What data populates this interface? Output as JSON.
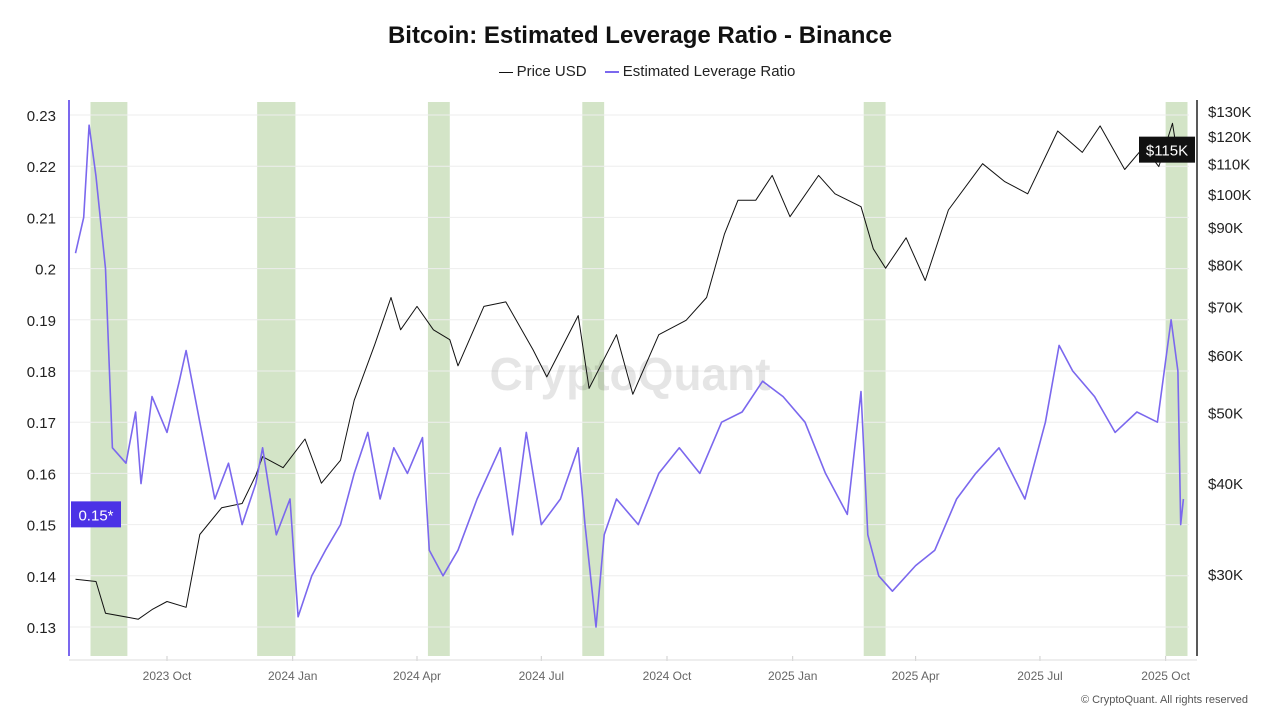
{
  "chart_data": {
    "type": "line",
    "title": "Bitcoin: Estimated Leverage Ratio - Binance",
    "legend_placement": "top-center",
    "grid": true,
    "x_ticks": [
      {
        "label": "2023 Oct",
        "date": "2023-10-01"
      },
      {
        "label": "2024 Jan",
        "date": "2024-01-01"
      },
      {
        "label": "2024 Apr",
        "date": "2024-04-01"
      },
      {
        "label": "2024 Jul",
        "date": "2024-07-01"
      },
      {
        "label": "2024 Oct",
        "date": "2024-10-01"
      },
      {
        "label": "2025 Jan",
        "date": "2025-01-01"
      },
      {
        "label": "2025 Apr",
        "date": "2025-04-01"
      },
      {
        "label": "2025 Jul",
        "date": "2025-07-01"
      },
      {
        "label": "2025 Oct",
        "date": "2025-10-01"
      }
    ],
    "x_range": [
      "2023-07-26",
      "2025-10-16"
    ],
    "left_axis": {
      "ticks": [
        0.13,
        0.14,
        0.15,
        0.16,
        0.17,
        0.18,
        0.19,
        0.2,
        0.21,
        0.22,
        0.23
      ],
      "range": [
        0.125,
        0.235
      ],
      "current_label": "0.15*",
      "current_value": 0.152
    },
    "right_axis": {
      "scale": "log",
      "ticks": [
        {
          "v": 30000,
          "label": "$30K"
        },
        {
          "v": 40000,
          "label": "$40K"
        },
        {
          "v": 50000,
          "label": "$50K"
        },
        {
          "v": 60000,
          "label": "$60K"
        },
        {
          "v": 70000,
          "label": "$70K"
        },
        {
          "v": 80000,
          "label": "$80K"
        },
        {
          "v": 90000,
          "label": "$90K"
        },
        {
          "v": 100000,
          "label": "$100K"
        },
        {
          "v": 110000,
          "label": "$110K"
        },
        {
          "v": 120000,
          "label": "$120K"
        },
        {
          "v": 130000,
          "label": "$130K"
        }
      ],
      "current_label": "$115K",
      "current_value": 115000
    },
    "highlight_bands": [
      [
        "2023-08-06",
        "2023-09-02"
      ],
      [
        "2023-12-06",
        "2024-01-03"
      ],
      [
        "2024-04-09",
        "2024-04-25"
      ],
      [
        "2024-07-31",
        "2024-08-16"
      ],
      [
        "2025-02-22",
        "2025-03-10"
      ],
      [
        "2025-10-01",
        "2025-10-17"
      ]
    ],
    "band_color": "#d3e4c7",
    "series": [
      {
        "name": "Price USD",
        "color": "#111111",
        "axis": "right",
        "points": [
          [
            "2023-07-26",
            29500
          ],
          [
            "2023-08-10",
            29300
          ],
          [
            "2023-08-17",
            26500
          ],
          [
            "2023-09-10",
            26000
          ],
          [
            "2023-09-20",
            26800
          ],
          [
            "2023-10-01",
            27500
          ],
          [
            "2023-10-15",
            27000
          ],
          [
            "2023-10-25",
            34000
          ],
          [
            "2023-11-10",
            37000
          ],
          [
            "2023-11-25",
            37500
          ],
          [
            "2023-12-05",
            41000
          ],
          [
            "2023-12-10",
            43500
          ],
          [
            "2023-12-25",
            42000
          ],
          [
            "2024-01-10",
            46000
          ],
          [
            "2024-01-22",
            40000
          ],
          [
            "2024-02-05",
            43000
          ],
          [
            "2024-02-15",
            52000
          ],
          [
            "2024-03-01",
            62000
          ],
          [
            "2024-03-13",
            72000
          ],
          [
            "2024-03-20",
            65000
          ],
          [
            "2024-04-01",
            70000
          ],
          [
            "2024-04-13",
            65000
          ],
          [
            "2024-04-25",
            63000
          ],
          [
            "2024-05-01",
            58000
          ],
          [
            "2024-05-20",
            70000
          ],
          [
            "2024-06-05",
            71000
          ],
          [
            "2024-06-25",
            61000
          ],
          [
            "2024-07-05",
            56000
          ],
          [
            "2024-07-28",
            68000
          ],
          [
            "2024-08-05",
            54000
          ],
          [
            "2024-08-25",
            64000
          ],
          [
            "2024-09-06",
            53000
          ],
          [
            "2024-09-25",
            64000
          ],
          [
            "2024-10-15",
            67000
          ],
          [
            "2024-10-30",
            72000
          ],
          [
            "2024-11-12",
            88000
          ],
          [
            "2024-11-22",
            98000
          ],
          [
            "2024-12-05",
            98000
          ],
          [
            "2024-12-17",
            106000
          ],
          [
            "2024-12-30",
            93000
          ],
          [
            "2025-01-20",
            106000
          ],
          [
            "2025-02-01",
            100000
          ],
          [
            "2025-02-20",
            96000
          ],
          [
            "2025-03-01",
            84000
          ],
          [
            "2025-03-10",
            79000
          ],
          [
            "2025-03-25",
            87000
          ],
          [
            "2025-04-08",
            76000
          ],
          [
            "2025-04-25",
            95000
          ],
          [
            "2025-05-20",
            110000
          ],
          [
            "2025-06-05",
            104000
          ],
          [
            "2025-06-22",
            100000
          ],
          [
            "2025-07-14",
            122000
          ],
          [
            "2025-08-01",
            114000
          ],
          [
            "2025-08-14",
            124000
          ],
          [
            "2025-09-01",
            108000
          ],
          [
            "2025-09-15",
            116000
          ],
          [
            "2025-09-26",
            109000
          ],
          [
            "2025-10-06",
            125000
          ],
          [
            "2025-10-10",
            112000
          ],
          [
            "2025-10-14",
            115000
          ]
        ]
      },
      {
        "name": "Estimated Leverage Ratio",
        "color": "#7b68ee",
        "axis": "left",
        "points": [
          [
            "2023-07-26",
            0.203
          ],
          [
            "2023-08-01",
            0.21
          ],
          [
            "2023-08-05",
            0.228
          ],
          [
            "2023-08-10",
            0.218
          ],
          [
            "2023-08-17",
            0.2
          ],
          [
            "2023-08-22",
            0.165
          ],
          [
            "2023-09-01",
            0.162
          ],
          [
            "2023-09-08",
            0.172
          ],
          [
            "2023-09-12",
            0.158
          ],
          [
            "2023-09-20",
            0.175
          ],
          [
            "2023-10-01",
            0.168
          ],
          [
            "2023-10-10",
            0.178
          ],
          [
            "2023-10-15",
            0.184
          ],
          [
            "2023-10-25",
            0.17
          ],
          [
            "2023-11-05",
            0.155
          ],
          [
            "2023-11-15",
            0.162
          ],
          [
            "2023-11-25",
            0.15
          ],
          [
            "2023-12-05",
            0.158
          ],
          [
            "2023-12-10",
            0.165
          ],
          [
            "2023-12-20",
            0.148
          ],
          [
            "2023-12-30",
            0.155
          ],
          [
            "2024-01-05",
            0.132
          ],
          [
            "2024-01-15",
            0.14
          ],
          [
            "2024-01-25",
            0.145
          ],
          [
            "2024-02-05",
            0.15
          ],
          [
            "2024-02-15",
            0.16
          ],
          [
            "2024-02-25",
            0.168
          ],
          [
            "2024-03-05",
            0.155
          ],
          [
            "2024-03-15",
            0.165
          ],
          [
            "2024-03-25",
            0.16
          ],
          [
            "2024-04-05",
            0.167
          ],
          [
            "2024-04-10",
            0.145
          ],
          [
            "2024-04-20",
            0.14
          ],
          [
            "2024-05-01",
            0.145
          ],
          [
            "2024-05-15",
            0.155
          ],
          [
            "2024-06-01",
            0.165
          ],
          [
            "2024-06-10",
            0.148
          ],
          [
            "2024-06-20",
            0.168
          ],
          [
            "2024-07-01",
            0.15
          ],
          [
            "2024-07-15",
            0.155
          ],
          [
            "2024-07-28",
            0.165
          ],
          [
            "2024-08-02",
            0.15
          ],
          [
            "2024-08-10",
            0.13
          ],
          [
            "2024-08-16",
            0.148
          ],
          [
            "2024-08-25",
            0.155
          ],
          [
            "2024-09-10",
            0.15
          ],
          [
            "2024-09-25",
            0.16
          ],
          [
            "2024-10-10",
            0.165
          ],
          [
            "2024-10-25",
            0.16
          ],
          [
            "2024-11-10",
            0.17
          ],
          [
            "2024-11-25",
            0.172
          ],
          [
            "2024-12-10",
            0.178
          ],
          [
            "2024-12-25",
            0.175
          ],
          [
            "2025-01-10",
            0.17
          ],
          [
            "2025-01-25",
            0.16
          ],
          [
            "2025-02-10",
            0.152
          ],
          [
            "2025-02-20",
            0.176
          ],
          [
            "2025-02-25",
            0.148
          ],
          [
            "2025-03-05",
            0.14
          ],
          [
            "2025-03-15",
            0.137
          ],
          [
            "2025-04-01",
            0.142
          ],
          [
            "2025-04-15",
            0.145
          ],
          [
            "2025-05-01",
            0.155
          ],
          [
            "2025-05-15",
            0.16
          ],
          [
            "2025-06-01",
            0.165
          ],
          [
            "2025-06-20",
            0.155
          ],
          [
            "2025-07-05",
            0.17
          ],
          [
            "2025-07-15",
            0.185
          ],
          [
            "2025-07-25",
            0.18
          ],
          [
            "2025-08-10",
            0.175
          ],
          [
            "2025-08-25",
            0.168
          ],
          [
            "2025-09-10",
            0.172
          ],
          [
            "2025-09-25",
            0.17
          ],
          [
            "2025-10-05",
            0.19
          ],
          [
            "2025-10-10",
            0.18
          ],
          [
            "2025-10-12",
            0.15
          ],
          [
            "2025-10-14",
            0.155
          ]
        ]
      }
    ]
  },
  "watermark": "CryptoQuant",
  "footer": "© CryptoQuant. All rights reserved"
}
